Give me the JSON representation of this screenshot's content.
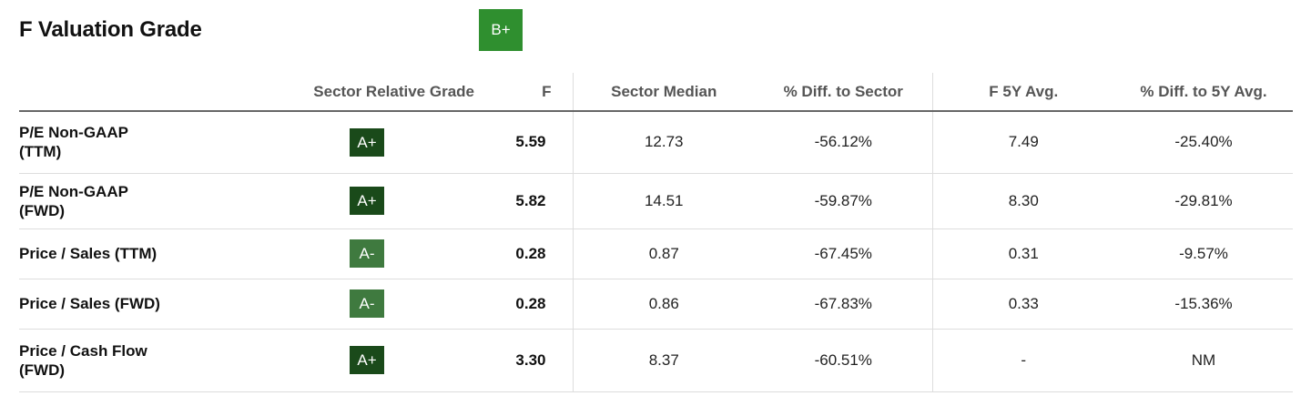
{
  "title": "F Valuation Grade",
  "overall_grade": "B+",
  "colors": {
    "overall_grade_bg": "#2f8f2f",
    "grade_dark": "#1a4a1a",
    "grade_mid": "#3f7a3f"
  },
  "columns": {
    "metric": "",
    "sector_relative_grade": "Sector Relative Grade",
    "value": "F",
    "sector_median": "Sector Median",
    "pct_diff_sector": "% Diff. to Sector",
    "avg_5y": "F 5Y Avg.",
    "pct_diff_5y": "% Diff. to 5Y Avg."
  },
  "rows": [
    {
      "metric_line1": "P/E Non-GAAP",
      "metric_line2": "(TTM)",
      "grade": "A+",
      "value": "5.59",
      "sector_median": "12.73",
      "pct_diff_sector": "-56.12%",
      "avg_5y": "7.49",
      "pct_diff_5y": "-25.40%"
    },
    {
      "metric_line1": "P/E Non-GAAP",
      "metric_line2": "(FWD)",
      "grade": "A+",
      "value": "5.82",
      "sector_median": "14.51",
      "pct_diff_sector": "-59.87%",
      "avg_5y": "8.30",
      "pct_diff_5y": "-29.81%"
    },
    {
      "metric_line1": "Price / Sales (TTM)",
      "metric_line2": "",
      "grade": "A-",
      "value": "0.28",
      "sector_median": "0.87",
      "pct_diff_sector": "-67.45%",
      "avg_5y": "0.31",
      "pct_diff_5y": "-9.57%"
    },
    {
      "metric_line1": "Price / Sales (FWD)",
      "metric_line2": "",
      "grade": "A-",
      "value": "0.28",
      "sector_median": "0.86",
      "pct_diff_sector": "-67.83%",
      "avg_5y": "0.33",
      "pct_diff_5y": "-15.36%"
    },
    {
      "metric_line1": "Price / Cash Flow",
      "metric_line2": "(FWD)",
      "grade": "A+",
      "value": "3.30",
      "sector_median": "8.37",
      "pct_diff_sector": "-60.51%",
      "avg_5y": "-",
      "pct_diff_5y": "NM"
    }
  ]
}
